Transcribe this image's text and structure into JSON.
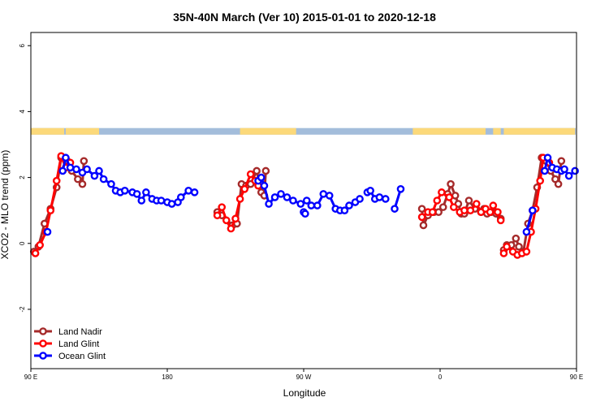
{
  "chart_data": {
    "type": "line",
    "title": "35N-40N March (Ver 10)   2015-01-01 to 2020-12-18",
    "xlabel": "Longitude",
    "ylabel": "XCO2 - MLO trend (ppm)",
    "xlim": [
      90,
      450
    ],
    "ylim": [
      -3.8,
      6.4
    ],
    "x_ticks": [
      {
        "value": 90,
        "label": "90 E"
      },
      {
        "value": 180,
        "label": "180"
      },
      {
        "value": 270,
        "label": "90 W"
      },
      {
        "value": 360,
        "label": "0"
      },
      {
        "value": 450,
        "label": "90 E"
      },
      {
        "value": 540,
        "label": "180"
      }
    ],
    "y_ticks": [
      {
        "value": -2,
        "label": "-2"
      },
      {
        "value": 0,
        "label": "0"
      },
      {
        "value": 2,
        "label": "2"
      },
      {
        "value": 4,
        "label": "4"
      },
      {
        "value": 6,
        "label": "6"
      }
    ],
    "legend_position": "bottom-left",
    "surface_band": {
      "y_range": [
        3.3,
        3.5
      ],
      "ocean_color": "#a3bddb",
      "land_color": "#fcd97a",
      "land_segments": [
        [
          90,
          112
        ],
        [
          113,
          135
        ],
        [
          228,
          265
        ],
        [
          342,
          390
        ],
        [
          395,
          400
        ],
        [
          402,
          449
        ]
      ]
    },
    "series": [
      {
        "name": "Land Nadir",
        "color": "#a52a2a",
        "segments": [
          [
            [
              92,
              -0.25
            ],
            [
              95,
              -0.1
            ],
            [
              99,
              0.6
            ],
            [
              103,
              1.05
            ],
            [
              107,
              1.7
            ],
            [
              110,
              2.6
            ],
            [
              114,
              2.5
            ],
            [
              117,
              2.2
            ],
            [
              121,
              1.95
            ],
            [
              124,
              1.8
            ],
            [
              125,
              2.5
            ]
          ],
          [
            [
              213,
              0.95
            ],
            [
              216,
              0.85
            ],
            [
              223,
              0.55
            ],
            [
              226,
              0.6
            ],
            [
              229,
              1.8
            ],
            [
              232,
              1.75
            ],
            [
              235,
              1.8
            ],
            [
              239,
              2.2
            ],
            [
              242,
              1.55
            ],
            [
              244,
              1.45
            ],
            [
              245,
              2.2
            ]
          ],
          [
            [
              348,
              1.05
            ],
            [
              349,
              0.55
            ],
            [
              352,
              0.85
            ],
            [
              356,
              0.95
            ],
            [
              359,
              0.95
            ],
            [
              362,
              1.1
            ],
            [
              365,
              1.5
            ],
            [
              367,
              1.8
            ],
            [
              370,
              1.45
            ],
            [
              372,
              1.2
            ],
            [
              374,
              0.9
            ],
            [
              376,
              0.9
            ],
            [
              379,
              1.3
            ],
            [
              383,
              1.05
            ],
            [
              387,
              0.95
            ],
            [
              389,
              1.05
            ],
            [
              391,
              0.9
            ],
            [
              394,
              0.95
            ],
            [
              397,
              0.9
            ],
            [
              400,
              0.75
            ]
          ],
          [
            [
              402,
              -0.2
            ],
            [
              404,
              -0.05
            ],
            [
              407,
              -0.05
            ],
            [
              410,
              0.15
            ],
            [
              412,
              -0.1
            ],
            [
              415,
              -0.25
            ],
            [
              418,
              0.6
            ],
            [
              421,
              1.0
            ],
            [
              424,
              1.7
            ],
            [
              427,
              2.6
            ],
            [
              430,
              2.5
            ],
            [
              433,
              2.2
            ],
            [
              436,
              1.95
            ],
            [
              438,
              1.8
            ],
            [
              440,
              2.5
            ]
          ]
        ]
      },
      {
        "name": "Land Glint",
        "color": "#ff0000",
        "segments": [
          [
            [
              93,
              -0.3
            ],
            [
              96,
              -0.05
            ],
            [
              100,
              0.35
            ],
            [
              103,
              1.0
            ],
            [
              107,
              1.9
            ],
            [
              110,
              2.65
            ],
            [
              113,
              2.3
            ],
            [
              116,
              2.45
            ]
          ],
          [
            [
              213,
              0.85
            ],
            [
              216,
              1.1
            ],
            [
              219,
              0.7
            ],
            [
              222,
              0.45
            ],
            [
              225,
              0.75
            ],
            [
              228,
              1.35
            ],
            [
              231,
              1.65
            ],
            [
              235,
              2.1
            ],
            [
              238,
              1.9
            ],
            [
              240,
              1.75
            ]
          ],
          [
            [
              348,
              0.8
            ],
            [
              352,
              0.95
            ],
            [
              355,
              0.95
            ],
            [
              358,
              1.3
            ],
            [
              361,
              1.55
            ],
            [
              366,
              1.4
            ],
            [
              369,
              1.1
            ],
            [
              373,
              0.95
            ],
            [
              376,
              1.0
            ],
            [
              380,
              1.0
            ],
            [
              384,
              1.2
            ],
            [
              387,
              0.95
            ],
            [
              390,
              1.05
            ],
            [
              393,
              0.95
            ],
            [
              395,
              1.15
            ],
            [
              398,
              0.95
            ],
            [
              400,
              0.7
            ]
          ],
          [
            [
              402,
              -0.3
            ],
            [
              404,
              -0.1
            ],
            [
              408,
              -0.25
            ],
            [
              411,
              -0.35
            ],
            [
              414,
              -0.3
            ],
            [
              417,
              -0.25
            ],
            [
              420,
              0.35
            ],
            [
              423,
              1.05
            ],
            [
              426,
              1.9
            ],
            [
              428,
              2.6
            ],
            [
              432,
              2.45
            ]
          ]
        ]
      },
      {
        "name": "Ocean Glint",
        "color": "#0000ff",
        "segments": [
          [
            [
              101,
              0.35
            ]
          ],
          [
            [
              111,
              2.2
            ],
            [
              113,
              2.6
            ],
            [
              116,
              2.3
            ],
            [
              120,
              2.25
            ],
            [
              124,
              2.15
            ],
            [
              127,
              2.25
            ],
            [
              132,
              2.05
            ],
            [
              135,
              2.2
            ],
            [
              138,
              1.95
            ],
            [
              143,
              1.8
            ],
            [
              146,
              1.6
            ],
            [
              149,
              1.55
            ],
            [
              152,
              1.6
            ],
            [
              157,
              1.55
            ],
            [
              160,
              1.5
            ],
            [
              163,
              1.3
            ],
            [
              166,
              1.55
            ],
            [
              170,
              1.35
            ],
            [
              173,
              1.3
            ],
            [
              176,
              1.3
            ],
            [
              180,
              1.25
            ],
            [
              183,
              1.2
            ],
            [
              187,
              1.25
            ],
            [
              189,
              1.4
            ],
            [
              194,
              1.6
            ],
            [
              198,
              1.55
            ]
          ],
          [
            [
              240,
              1.9
            ],
            [
              242,
              2.0
            ],
            [
              244,
              1.75
            ],
            [
              247,
              1.2
            ],
            [
              251,
              1.4
            ],
            [
              255,
              1.5
            ],
            [
              259,
              1.4
            ],
            [
              263,
              1.3
            ],
            [
              268,
              1.2
            ],
            [
              272,
              1.3
            ],
            [
              275,
              1.15
            ],
            [
              279,
              1.15
            ],
            [
              283,
              1.5
            ],
            [
              287,
              1.45
            ],
            [
              291,
              1.05
            ],
            [
              294,
              1.0
            ],
            [
              297,
              1.0
            ],
            [
              300,
              1.15
            ],
            [
              304,
              1.25
            ],
            [
              307,
              1.35
            ]
          ],
          [
            [
              312,
              1.55
            ],
            [
              314,
              1.6
            ],
            [
              317,
              1.35
            ],
            [
              320,
              1.4
            ],
            [
              324,
              1.35
            ]
          ],
          [
            [
              330,
              1.05
            ],
            [
              334,
              1.65
            ]
          ],
          [
            [
              417,
              0.35
            ],
            [
              421,
              1.0
            ]
          ],
          [
            [
              429,
              2.2
            ],
            [
              431,
              2.6
            ],
            [
              434,
              2.3
            ],
            [
              437,
              2.25
            ],
            [
              440,
              2.2
            ],
            [
              442,
              2.25
            ],
            [
              445,
              2.05
            ],
            [
              449,
              2.2
            ]
          ],
          [
            [
              270,
              0.95
            ],
            [
              271,
              0.9
            ]
          ]
        ]
      }
    ]
  }
}
